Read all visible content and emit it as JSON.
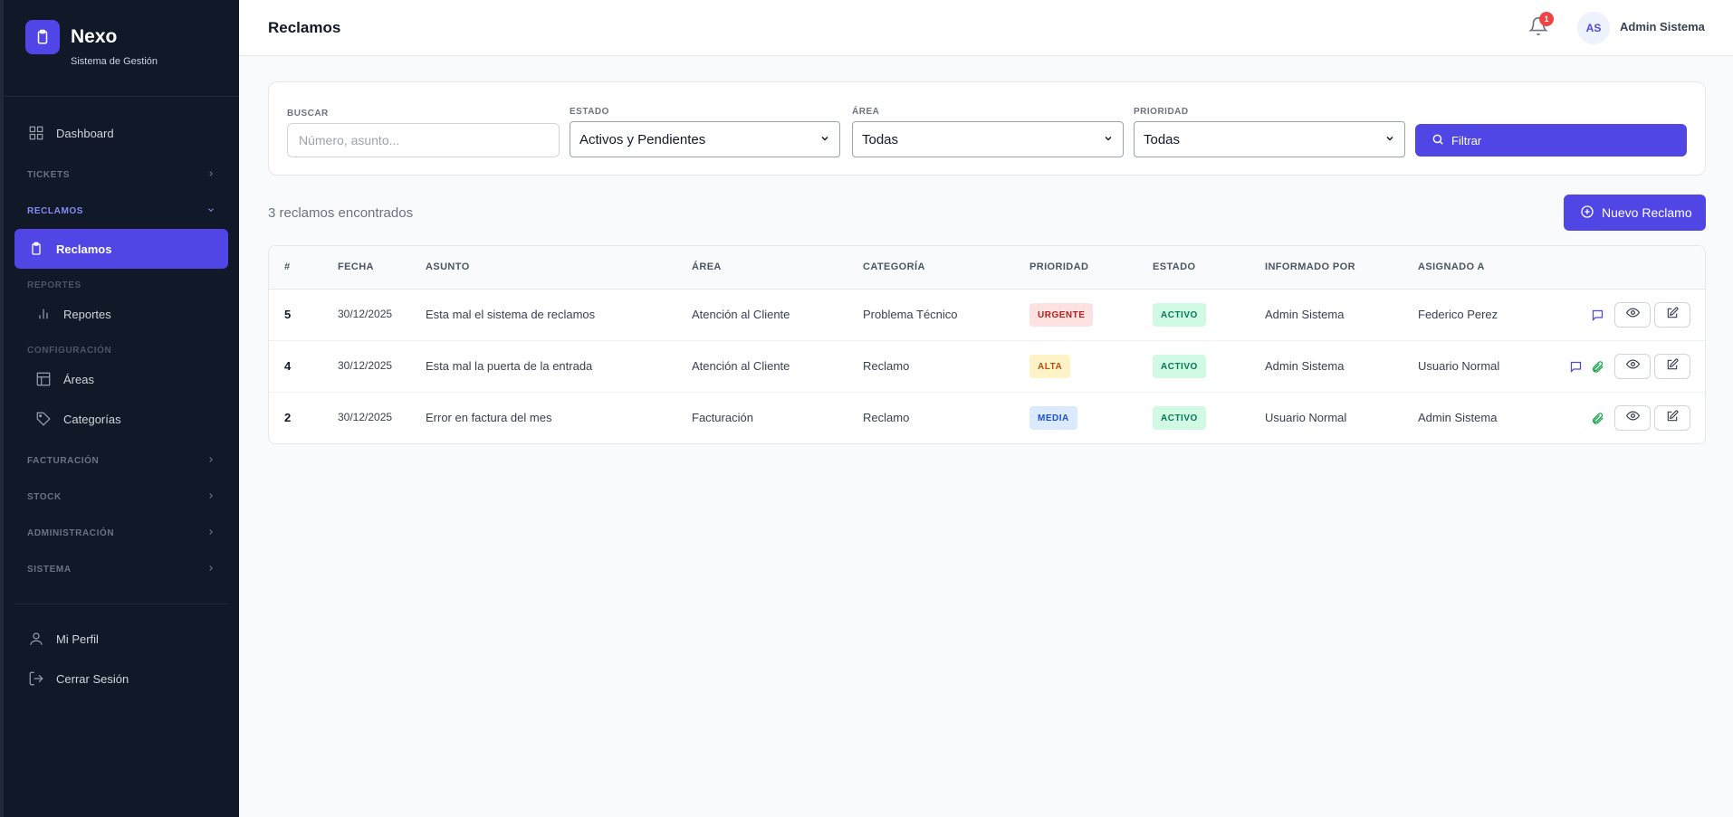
{
  "brand": {
    "name": "Nexo",
    "subtitle": "Sistema de Gestión"
  },
  "sidebar": {
    "dashboard": "Dashboard",
    "sections": {
      "tickets": "TICKETS",
      "reclamos": "RECLAMOS",
      "reportes": "REPORTES",
      "configuracion": "CONFIGURACIÓN",
      "facturacion": "FACTURACIÓN",
      "stock": "STOCK",
      "administracion": "ADMINISTRACIÓN",
      "sistema": "SISTEMA"
    },
    "items": {
      "reclamos": "Reclamos",
      "reportes": "Reportes",
      "areas": "Áreas",
      "categorias": "Categorías",
      "mi_perfil": "Mi Perfil",
      "cerrar_sesion": "Cerrar Sesión"
    }
  },
  "header": {
    "title": "Reclamos",
    "notifications": "1",
    "avatar_initials": "AS",
    "user_name": "Admin Sistema"
  },
  "filters": {
    "search_label": "BUSCAR",
    "search_placeholder": "Número, asunto...",
    "estado_label": "ESTADO",
    "estado_value": "Activos y Pendientes",
    "area_label": "ÁREA",
    "area_value": "Todas",
    "prioridad_label": "PRIORIDAD",
    "prioridad_value": "Todas",
    "filter_button": "Filtrar"
  },
  "results": {
    "count_text": "3 reclamos encontrados",
    "new_button": "Nuevo Reclamo"
  },
  "table": {
    "headers": {
      "num": "#",
      "fecha": "FECHA",
      "asunto": "ASUNTO",
      "area": "ÁREA",
      "categoria": "CATEGORÍA",
      "prioridad": "PRIORIDAD",
      "estado": "ESTADO",
      "informado": "INFORMADO POR",
      "asignado": "ASIGNADO A"
    },
    "rows": [
      {
        "num": "5",
        "fecha": "30/12/2025",
        "asunto": "Esta mal el sistema de reclamos",
        "area": "Atención al Cliente",
        "categoria": "Problema Técnico",
        "prioridad": "URGENTE",
        "prioridad_class": "urgente",
        "estado": "ACTIVO",
        "informado": "Admin Sistema",
        "asignado": "Federico Perez",
        "icons": [
          "comment-icon"
        ]
      },
      {
        "num": "4",
        "fecha": "30/12/2025",
        "asunto": "Esta mal la puerta de la entrada",
        "area": "Atención al Cliente",
        "categoria": "Reclamo",
        "prioridad": "ALTA",
        "prioridad_class": "alta",
        "estado": "ACTIVO",
        "informado": "Admin Sistema",
        "asignado": "Usuario Normal",
        "icons": [
          "comment-icon",
          "attachment-icon"
        ]
      },
      {
        "num": "2",
        "fecha": "30/12/2025",
        "asunto": "Error en factura del mes",
        "area": "Facturación",
        "categoria": "Reclamo",
        "prioridad": "MEDIA",
        "prioridad_class": "media",
        "estado": "ACTIVO",
        "informado": "Usuario Normal",
        "asignado": "Admin Sistema",
        "icons": [
          "attachment-icon"
        ]
      }
    ]
  },
  "colors": {
    "accent": "#4f46e5",
    "sidebar_bg": "#111827",
    "urgent": "#b91c1c",
    "active": "#047857"
  }
}
